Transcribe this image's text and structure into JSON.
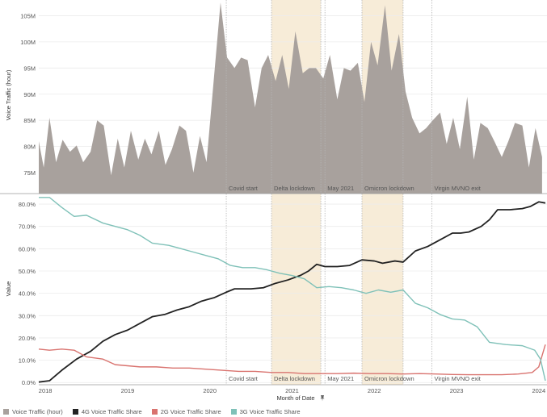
{
  "chart_data": [
    {
      "type": "area",
      "name": "top-panel",
      "ylabel": "Voice Traffic (hour)",
      "ylim": [
        71,
        108
      ],
      "yticks": [
        75,
        80,
        85,
        90,
        95,
        100,
        105
      ],
      "ytick_labels": [
        "75M",
        "80M",
        "85M",
        "90M",
        "95M",
        "100M",
        "105M"
      ],
      "series": [
        {
          "name": "Voice Traffic (hour)",
          "color": "#a8a19d",
          "points": [
            [
              2017.92,
              81
            ],
            [
              2017.98,
              76
            ],
            [
              2018.05,
              85.5
            ],
            [
              2018.13,
              77
            ],
            [
              2018.21,
              81.3
            ],
            [
              2018.3,
              79
            ],
            [
              2018.38,
              80.2
            ],
            [
              2018.46,
              77
            ],
            [
              2018.55,
              79
            ],
            [
              2018.63,
              85
            ],
            [
              2018.71,
              84
            ],
            [
              2018.8,
              74.5
            ],
            [
              2018.88,
              81.5
            ],
            [
              2018.96,
              76
            ],
            [
              2019.04,
              83
            ],
            [
              2019.13,
              77.5
            ],
            [
              2019.21,
              81.5
            ],
            [
              2019.29,
              78.5
            ],
            [
              2019.38,
              83
            ],
            [
              2019.46,
              76.5
            ],
            [
              2019.54,
              79.5
            ],
            [
              2019.63,
              84
            ],
            [
              2019.71,
              83
            ],
            [
              2019.8,
              75
            ],
            [
              2019.88,
              82
            ],
            [
              2019.96,
              77
            ],
            [
              2020.13,
              107.5
            ],
            [
              2020.21,
              97
            ],
            [
              2020.3,
              95
            ],
            [
              2020.38,
              97
            ],
            [
              2020.46,
              96.5
            ],
            [
              2020.55,
              87.5
            ],
            [
              2020.63,
              95
            ],
            [
              2020.71,
              97.5
            ],
            [
              2020.8,
              92.5
            ],
            [
              2020.88,
              97.5
            ],
            [
              2020.96,
              91
            ],
            [
              2021.04,
              102
            ],
            [
              2021.13,
              94
            ],
            [
              2021.21,
              95
            ],
            [
              2021.29,
              95
            ],
            [
              2021.38,
              93
            ],
            [
              2021.46,
              97.5
            ],
            [
              2021.55,
              89
            ],
            [
              2021.63,
              95
            ],
            [
              2021.71,
              94.5
            ],
            [
              2021.8,
              96
            ],
            [
              2021.88,
              88.5
            ],
            [
              2021.96,
              100
            ],
            [
              2022.04,
              95.5
            ],
            [
              2022.13,
              107
            ],
            [
              2022.21,
              94.5
            ],
            [
              2022.3,
              101.5
            ],
            [
              2022.38,
              90.5
            ],
            [
              2022.46,
              85.5
            ],
            [
              2022.55,
              82.5
            ],
            [
              2022.63,
              83.5
            ],
            [
              2022.71,
              85
            ],
            [
              2022.8,
              86.5
            ],
            [
              2022.88,
              80.5
            ],
            [
              2022.96,
              85.5
            ],
            [
              2023.04,
              79.5
            ],
            [
              2023.13,
              89.5
            ],
            [
              2023.21,
              77.5
            ],
            [
              2023.29,
              84.5
            ],
            [
              2023.38,
              83.5
            ],
            [
              2023.46,
              81
            ],
            [
              2023.55,
              78
            ],
            [
              2023.63,
              81
            ],
            [
              2023.71,
              84.5
            ],
            [
              2023.8,
              84
            ],
            [
              2023.88,
              76
            ],
            [
              2023.96,
              83.5
            ],
            [
              2024.04,
              78
            ]
          ]
        }
      ]
    },
    {
      "type": "line",
      "name": "bottom-panel",
      "xlabel": "Month of Date",
      "ylabel": "Value",
      "xlim": [
        2017.92,
        2024.1
      ],
      "xticks": [
        2018,
        2019,
        2020,
        2021,
        2022,
        2023,
        2024
      ],
      "xtick_labels": [
        "2018",
        "2019",
        "2020",
        "2021",
        "2022",
        "2023",
        "2024"
      ],
      "ylim": [
        -1,
        84
      ],
      "yticks": [
        0,
        10,
        20,
        30,
        40,
        50,
        60,
        70,
        80
      ],
      "ytick_labels": [
        "0.0%",
        "10.0%",
        "20.0%",
        "30.0%",
        "40.0%",
        "50.0%",
        "60.0%",
        "70.0%",
        "80.0%"
      ],
      "series": [
        {
          "name": "4G Voice Traffic Share",
          "color": "#222222",
          "points": [
            [
              2017.92,
              0.2
            ],
            [
              2018.05,
              0.8
            ],
            [
              2018.2,
              5.5
            ],
            [
              2018.38,
              10.5
            ],
            [
              2018.55,
              14
            ],
            [
              2018.7,
              18.5
            ],
            [
              2018.85,
              21.5
            ],
            [
              2019.0,
              23.5
            ],
            [
              2019.15,
              26.5
            ],
            [
              2019.3,
              29.5
            ],
            [
              2019.45,
              30.5
            ],
            [
              2019.6,
              32.5
            ],
            [
              2019.75,
              34
            ],
            [
              2019.9,
              36.5
            ],
            [
              2020.05,
              38
            ],
            [
              2020.2,
              40.5
            ],
            [
              2020.3,
              42
            ],
            [
              2020.5,
              42
            ],
            [
              2020.65,
              42.5
            ],
            [
              2020.8,
              44.5
            ],
            [
              2020.95,
              46
            ],
            [
              2021.1,
              48
            ],
            [
              2021.2,
              50
            ],
            [
              2021.3,
              53
            ],
            [
              2021.4,
              52
            ],
            [
              2021.55,
              52
            ],
            [
              2021.7,
              52.5
            ],
            [
              2021.85,
              55
            ],
            [
              2022.0,
              54.5
            ],
            [
              2022.1,
              53.5
            ],
            [
              2022.25,
              54.5
            ],
            [
              2022.35,
              54
            ],
            [
              2022.5,
              59
            ],
            [
              2022.65,
              61
            ],
            [
              2022.8,
              64
            ],
            [
              2022.95,
              67
            ],
            [
              2023.05,
              67
            ],
            [
              2023.15,
              67.5
            ],
            [
              2023.3,
              70
            ],
            [
              2023.4,
              73
            ],
            [
              2023.5,
              77.5
            ],
            [
              2023.65,
              77.5
            ],
            [
              2023.8,
              78
            ],
            [
              2023.9,
              79
            ],
            [
              2024.0,
              81
            ],
            [
              2024.08,
              80.5
            ]
          ]
        },
        {
          "name": "2G Voice Traffic Share",
          "color": "#d9736f",
          "points": [
            [
              2017.92,
              15
            ],
            [
              2018.05,
              14.5
            ],
            [
              2018.2,
              15
            ],
            [
              2018.35,
              14.5
            ],
            [
              2018.5,
              11.5
            ],
            [
              2018.7,
              10.5
            ],
            [
              2018.85,
              8
            ],
            [
              2019.0,
              7.5
            ],
            [
              2019.15,
              7
            ],
            [
              2019.35,
              7
            ],
            [
              2019.55,
              6.5
            ],
            [
              2019.75,
              6.5
            ],
            [
              2019.95,
              6
            ],
            [
              2020.15,
              5.5
            ],
            [
              2020.35,
              5
            ],
            [
              2020.55,
              5
            ],
            [
              2020.75,
              4.5
            ],
            [
              2020.95,
              4.5
            ],
            [
              2021.15,
              4
            ],
            [
              2021.35,
              4
            ],
            [
              2021.55,
              4
            ],
            [
              2021.75,
              4.2
            ],
            [
              2021.95,
              4
            ],
            [
              2022.15,
              4
            ],
            [
              2022.35,
              3.8
            ],
            [
              2022.55,
              4
            ],
            [
              2022.75,
              3.8
            ],
            [
              2022.95,
              3.6
            ],
            [
              2023.15,
              3.5
            ],
            [
              2023.35,
              3.5
            ],
            [
              2023.55,
              3.5
            ],
            [
              2023.75,
              3.8
            ],
            [
              2023.92,
              4.5
            ],
            [
              2024.0,
              7
            ],
            [
              2024.08,
              17
            ]
          ]
        },
        {
          "name": "3G Voice Traffic Share",
          "color": "#7fc1b8",
          "points": [
            [
              2017.92,
              83
            ],
            [
              2018.05,
              83
            ],
            [
              2018.2,
              78.5
            ],
            [
              2018.35,
              74.5
            ],
            [
              2018.5,
              75
            ],
            [
              2018.7,
              71.5
            ],
            [
              2018.85,
              70
            ],
            [
              2019.0,
              68.5
            ],
            [
              2019.15,
              66
            ],
            [
              2019.3,
              62.5
            ],
            [
              2019.5,
              61.5
            ],
            [
              2019.65,
              60
            ],
            [
              2019.8,
              58.5
            ],
            [
              2019.95,
              57
            ],
            [
              2020.1,
              55.5
            ],
            [
              2020.25,
              52.5
            ],
            [
              2020.4,
              51.5
            ],
            [
              2020.55,
              51.5
            ],
            [
              2020.7,
              50.5
            ],
            [
              2020.85,
              49
            ],
            [
              2021.0,
              48
            ],
            [
              2021.15,
              46.5
            ],
            [
              2021.3,
              42.5
            ],
            [
              2021.45,
              43
            ],
            [
              2021.6,
              42.5
            ],
            [
              2021.75,
              41.5
            ],
            [
              2021.9,
              40
            ],
            [
              2022.05,
              41.5
            ],
            [
              2022.2,
              40.5
            ],
            [
              2022.35,
              41.5
            ],
            [
              2022.5,
              35.5
            ],
            [
              2022.65,
              33.5
            ],
            [
              2022.8,
              30.5
            ],
            [
              2022.95,
              28.5
            ],
            [
              2023.1,
              28
            ],
            [
              2023.25,
              25
            ],
            [
              2023.4,
              18
            ],
            [
              2023.6,
              17
            ],
            [
              2023.8,
              16.5
            ],
            [
              2023.95,
              14.5
            ],
            [
              2024.02,
              10.5
            ],
            [
              2024.08,
              0.8
            ]
          ]
        }
      ],
      "annotations": [
        {
          "type": "line",
          "x": 2020.2,
          "label": "Covid start"
        },
        {
          "type": "band",
          "x0": 2020.75,
          "x1": 2021.35,
          "label": "Delta lockdown",
          "color": "#f7ecd8"
        },
        {
          "type": "line",
          "x": 2021.4,
          "label": "May 2021"
        },
        {
          "type": "band",
          "x0": 2021.85,
          "x1": 2022.35,
          "label": "Omicron lockdown",
          "color": "#f7ecd8"
        },
        {
          "type": "line",
          "x": 2022.7,
          "label": "Virgin MVNO exit"
        }
      ]
    }
  ],
  "legend": [
    {
      "label": "Voice Traffic (hour)",
      "color": "#a8a19d"
    },
    {
      "label": "4G Voice Traffic Share",
      "color": "#222222"
    },
    {
      "label": "2G Voice Traffic Share",
      "color": "#d9736f"
    },
    {
      "label": "3G Voice Traffic Share",
      "color": "#7fc1b8"
    }
  ],
  "filter_icon": "pin-icon"
}
